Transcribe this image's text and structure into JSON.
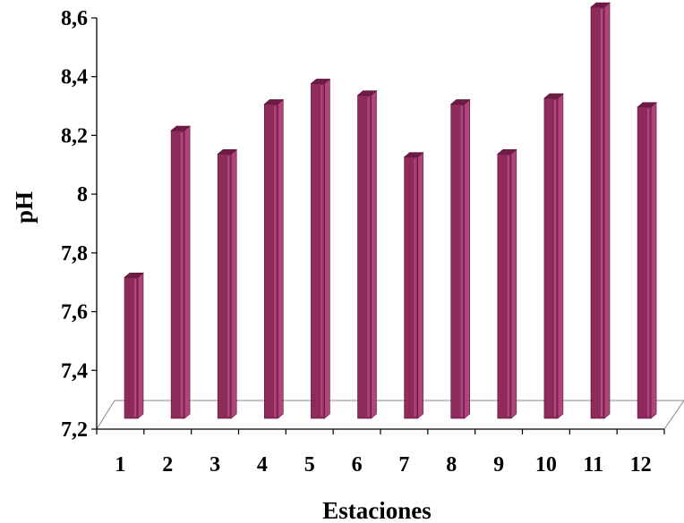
{
  "chart_data": {
    "type": "bar",
    "categories": [
      "1",
      "2",
      "3",
      "4",
      "5",
      "6",
      "7",
      "8",
      "9",
      "10",
      "11",
      "12"
    ],
    "values": [
      7.68,
      8.18,
      8.1,
      8.27,
      8.34,
      8.3,
      8.09,
      8.27,
      8.1,
      8.29,
      8.6,
      8.26
    ],
    "xlabel": "Estaciones",
    "ylabel": "pH",
    "ylim": [
      7.2,
      8.6
    ],
    "yticks": [
      "7,2",
      "7,4",
      "7,6",
      "7,8",
      "8",
      "8,2",
      "8,4",
      "8,6"
    ],
    "grid": false,
    "legend": "none",
    "bar_color": "#8e2a5c",
    "bar_side_color": "#b0457c",
    "bar_top_color": "#6e1c45"
  }
}
